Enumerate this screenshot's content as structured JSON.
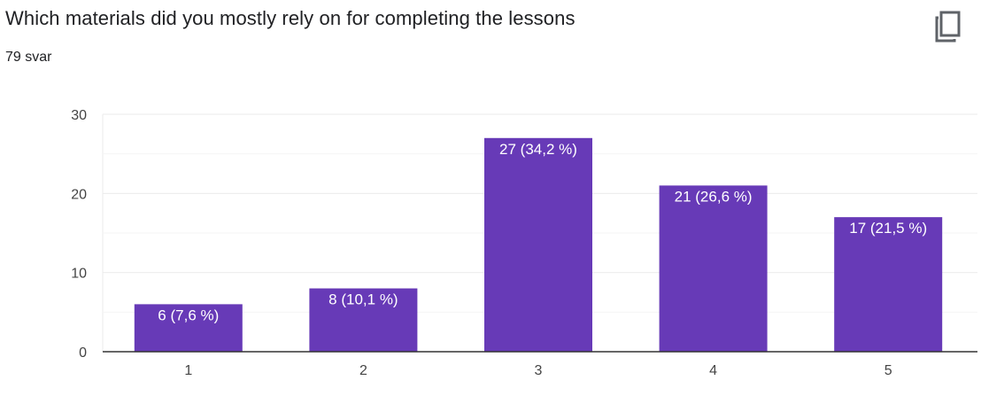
{
  "header": {
    "title": "Which materials did you mostly rely on for completing the lessons",
    "response_count": "79 svar",
    "copy_icon": "copy-icon"
  },
  "colors": {
    "bar": "#673ab7",
    "grid": "#ebebeb",
    "minor_grid": "#f5f5f5",
    "axis": "#333333",
    "text": "#202124"
  },
  "chart_data": {
    "type": "bar",
    "title": "",
    "xlabel": "",
    "ylabel": "",
    "categories": [
      "1",
      "2",
      "3",
      "4",
      "5"
    ],
    "values": [
      6,
      8,
      27,
      21,
      17
    ],
    "data_labels": [
      "6 (7,6 %)",
      "8 (10,1 %)",
      "27 (34,2 %)",
      "21 (26,6 %)",
      "17 (21,5 %)"
    ],
    "ylim": [
      0,
      30
    ],
    "yticks": [
      "0",
      "10",
      "20",
      "30"
    ],
    "grid": true,
    "legend": "none"
  }
}
